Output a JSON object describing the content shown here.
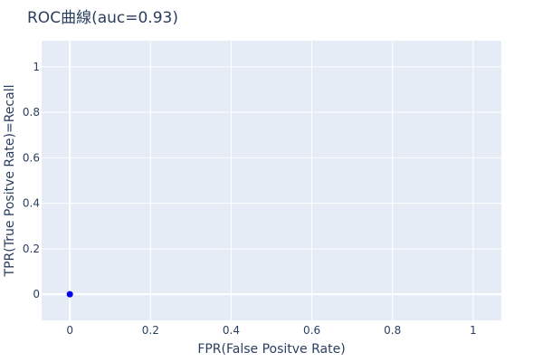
{
  "chart_data": {
    "type": "scatter",
    "title": "ROC曲線(auc=0.93)",
    "xlabel": "FPR(False Positve Rate)",
    "ylabel": "TPR(True Positve Rate)=Recall",
    "xlim": [
      -0.07,
      1.07
    ],
    "ylim": [
      -0.115,
      1.115
    ],
    "xticks": [
      0,
      0.2,
      0.4,
      0.6,
      0.8,
      1
    ],
    "xtick_labels": [
      "0",
      "0.2",
      "0.4",
      "0.6",
      "0.8",
      "1"
    ],
    "yticks": [
      0,
      0.2,
      0.4,
      0.6,
      0.8,
      1
    ],
    "ytick_labels": [
      "0",
      "0.2",
      "0.4",
      "0.6",
      "0.8",
      "1"
    ],
    "grid": true,
    "series": [
      {
        "color": "#0000ee",
        "points": [
          {
            "x": 0,
            "y": 0
          }
        ]
      }
    ],
    "colors": {
      "plot_bg": "#e5ecf6",
      "grid": "#ffffff",
      "text": "#2a3f5f"
    }
  }
}
